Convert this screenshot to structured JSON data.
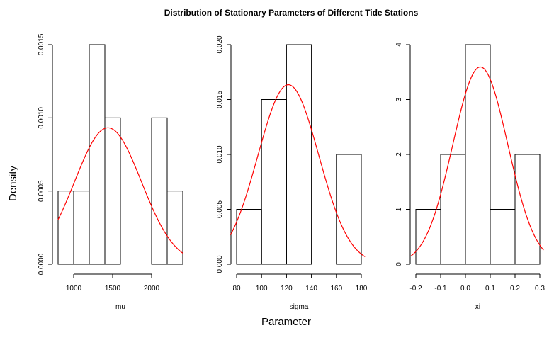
{
  "figure": {
    "title": "Distribution of Stationary Parameters of Different Tide Stations",
    "xlabel": "Parameter",
    "ylabel": "Density"
  },
  "chart_data": [
    {
      "type": "bar",
      "subtype": "histogram-with-density-curve",
      "xlabel": "mu",
      "ylabel": "",
      "xlim": [
        800,
        2400
      ],
      "ylim": [
        0,
        0.0015
      ],
      "xticks": [
        1000,
        1500,
        2000
      ],
      "xtick_labels": [
        "1000",
        "1500",
        "2000"
      ],
      "yticks": [
        0,
        0.0005,
        0.001,
        0.0015
      ],
      "ytick_labels": [
        "0.0000",
        "0.0005",
        "0.0010",
        "0.0015"
      ],
      "bins": [
        {
          "x0": 800,
          "x1": 1000,
          "density": 0.0005
        },
        {
          "x0": 1000,
          "x1": 1200,
          "density": 0.0005
        },
        {
          "x0": 1200,
          "x1": 1400,
          "density": 0.0015
        },
        {
          "x0": 1400,
          "x1": 1600,
          "density": 0.001
        },
        {
          "x0": 1600,
          "x1": 1800,
          "density": 0
        },
        {
          "x0": 1800,
          "x1": 2000,
          "density": 0
        },
        {
          "x0": 2000,
          "x1": 2200,
          "density": 0.001
        },
        {
          "x0": 2200,
          "x1": 2400,
          "density": 0.0005
        }
      ],
      "curve": {
        "type": "normal",
        "mean": 1440,
        "sd": 428,
        "x_range": [
          800,
          2400
        ],
        "color": "#ff0000"
      }
    },
    {
      "type": "bar",
      "subtype": "histogram-with-density-curve",
      "xlabel": "sigma",
      "ylabel": "",
      "xlim": [
        80,
        180
      ],
      "ylim": [
        0,
        0.02
      ],
      "xticks": [
        80,
        100,
        120,
        140,
        160,
        180
      ],
      "xtick_labels": [
        "80",
        "100",
        "120",
        "140",
        "160",
        "180"
      ],
      "yticks": [
        0,
        0.005,
        0.01,
        0.015,
        0.02
      ],
      "ytick_labels": [
        "0.000",
        "0.005",
        "0.010",
        "0.015",
        "0.020"
      ],
      "bins": [
        {
          "x0": 80,
          "x1": 100,
          "density": 0.005
        },
        {
          "x0": 100,
          "x1": 120,
          "density": 0.015
        },
        {
          "x0": 120,
          "x1": 140,
          "density": 0.02
        },
        {
          "x0": 140,
          "x1": 160,
          "density": 0
        },
        {
          "x0": 160,
          "x1": 180,
          "density": 0.01
        }
      ],
      "curve": {
        "type": "normal",
        "mean": 121.5,
        "sd": 24.4,
        "x_range": [
          75,
          183
        ],
        "color": "#ff0000"
      }
    },
    {
      "type": "bar",
      "subtype": "histogram-with-density-curve",
      "xlabel": "xi",
      "ylabel": "",
      "xlim": [
        -0.2,
        0.3
      ],
      "ylim": [
        0,
        4
      ],
      "xticks": [
        -0.2,
        -0.1,
        0.0,
        0.1,
        0.2,
        0.3
      ],
      "xtick_labels": [
        "-0.2",
        "-0.1",
        "0.0",
        "0.1",
        "0.2",
        "0.3"
      ],
      "yticks": [
        0,
        1,
        2,
        3,
        4
      ],
      "ytick_labels": [
        "0",
        "1",
        "2",
        "3",
        "4"
      ],
      "bins": [
        {
          "x0": -0.2,
          "x1": -0.1,
          "density": 1
        },
        {
          "x0": -0.1,
          "x1": 0.0,
          "density": 2
        },
        {
          "x0": 0.0,
          "x1": 0.1,
          "density": 4
        },
        {
          "x0": 0.1,
          "x1": 0.2,
          "density": 1
        },
        {
          "x0": 0.2,
          "x1": 0.3,
          "density": 2
        }
      ],
      "curve": {
        "type": "normal",
        "mean": 0.06,
        "sd": 0.111,
        "x_range": [
          -0.22,
          0.315
        ],
        "color": "#ff0000"
      }
    }
  ]
}
